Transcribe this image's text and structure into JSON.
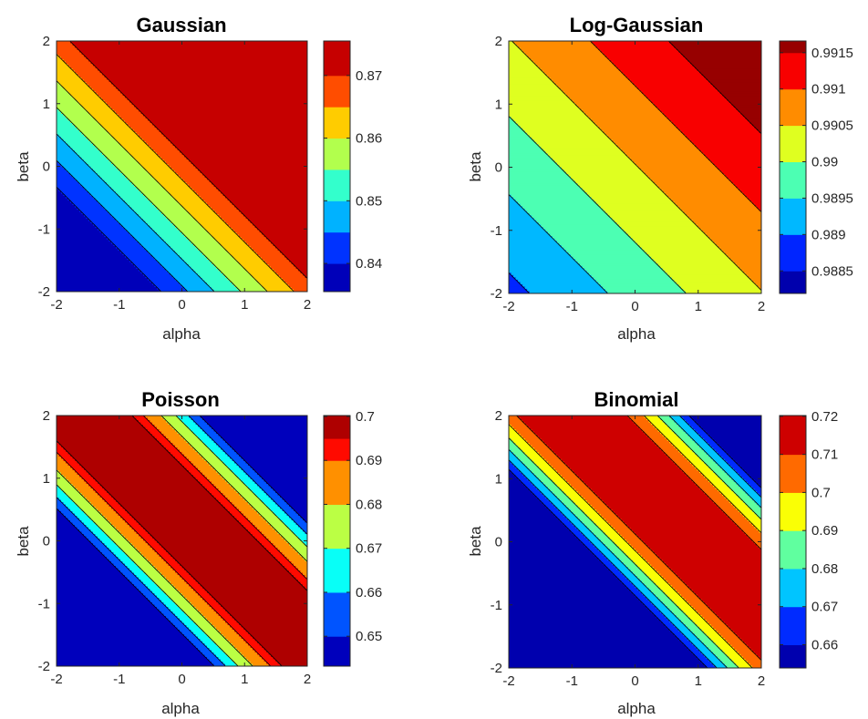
{
  "chart_data": [
    {
      "type": "contourf",
      "title": "Gaussian",
      "xlabel": "alpha",
      "ylabel": "beta",
      "xlim": [
        -2,
        2
      ],
      "ylim": [
        -2,
        2
      ],
      "xticks": [
        "-2",
        "-1",
        "0",
        "1",
        "2"
      ],
      "yticks": [
        "-2",
        "-1",
        "0",
        "1",
        "2"
      ],
      "colorbar": {
        "ticks": [
          "0.84",
          "0.85",
          "0.86",
          "0.87"
        ],
        "tick_values": [
          0.84,
          0.85,
          0.86,
          0.87
        ],
        "range": [
          0.8355,
          0.8755
        ]
      },
      "levels": [
        0.8355,
        0.84,
        0.845,
        0.85,
        0.855,
        0.86,
        0.865,
        0.87,
        0.8755
      ],
      "surface": {
        "form": "planar",
        "at_origin": 0.8675,
        "d_alpha": 0.0118,
        "d_beta": 0.0118
      }
    },
    {
      "type": "contourf",
      "title": "Log-Gaussian",
      "xlabel": "alpha",
      "ylabel": "beta",
      "xlim": [
        -2,
        2
      ],
      "ylim": [
        -2,
        2
      ],
      "xticks": [
        "-2",
        "-1",
        "0",
        "1",
        "2"
      ],
      "yticks": [
        "-2",
        "-1",
        "0",
        "1",
        "2"
      ],
      "colorbar": {
        "ticks": [
          "0.9885",
          "0.989",
          "0.9895",
          "0.99",
          "0.9905",
          "0.991",
          "0.9915"
        ],
        "tick_values": [
          0.9885,
          0.989,
          0.9895,
          0.99,
          0.9905,
          0.991,
          0.9915
        ],
        "range": [
          0.98819,
          0.99166
        ]
      },
      "levels": [
        0.98819,
        0.9885,
        0.989,
        0.9895,
        0.99,
        0.9905,
        0.991,
        0.9915,
        0.99166
      ],
      "surface": {
        "form": "planar",
        "at_origin": 0.99048,
        "d_alpha": 0.000403,
        "d_beta": 0.000403
      }
    },
    {
      "type": "contourf",
      "title": "Poisson",
      "xlabel": "alpha",
      "ylabel": "beta",
      "xlim": [
        -2,
        2
      ],
      "ylim": [
        -2,
        2
      ],
      "xticks": [
        "-2",
        "-1",
        "0",
        "1",
        "2"
      ],
      "yticks": [
        "-2",
        "-1",
        "0",
        "1",
        "2"
      ],
      "colorbar": {
        "ticks": [
          "0.65",
          "0.66",
          "0.67",
          "0.68",
          "0.69",
          "0.7"
        ],
        "tick_values": [
          0.65,
          0.66,
          0.67,
          0.68,
          0.69,
          0.7
        ],
        "range": [
          0.6432,
          0.7002
        ]
      },
      "levels": [
        0.6432,
        0.65,
        0.66,
        0.67,
        0.68,
        0.69,
        0.695,
        0.7002
      ],
      "surface": {
        "form": "ridge",
        "peak": 0.705,
        "ridge_offset": 0.4,
        "curvature": 0.0155
      }
    },
    {
      "type": "contourf",
      "title": "Binomial",
      "xlabel": "alpha",
      "ylabel": "beta",
      "xlim": [
        -2,
        2
      ],
      "ylim": [
        -2,
        2
      ],
      "xticks": [
        "-2",
        "-1",
        "0",
        "1",
        "2"
      ],
      "yticks": [
        "-2",
        "-1",
        "0",
        "1",
        "2"
      ],
      "colorbar": {
        "ticks": [
          "0.66",
          "0.67",
          "0.68",
          "0.69",
          "0.7",
          "0.71",
          "0.72"
        ],
        "tick_values": [
          0.66,
          0.67,
          0.68,
          0.69,
          0.7,
          0.71,
          0.72
        ],
        "range": [
          0.6539,
          0.7202
        ]
      },
      "levels": [
        0.6539,
        0.66,
        0.67,
        0.68,
        0.69,
        0.7,
        0.71,
        0.7202
      ],
      "surface": {
        "form": "ridge",
        "peak": 0.7245,
        "ridge_offset": 1.0,
        "curvature": 0.0188
      }
    }
  ],
  "colormap": "jet"
}
